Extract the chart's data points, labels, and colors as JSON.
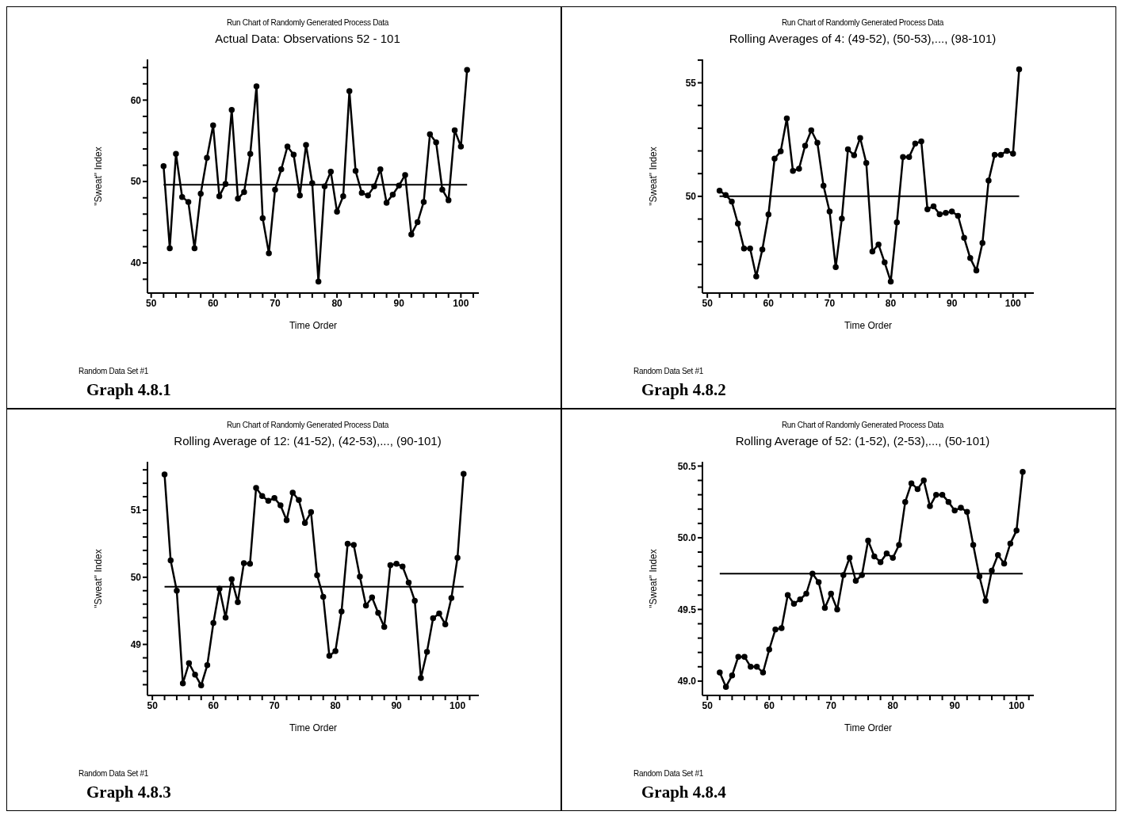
{
  "chart_data": [
    {
      "type": "line",
      "title": "Run Chart of Randomly Generated Process Data",
      "subtitle": "Actual Data:  Observations 52 - 101",
      "xlabel": "Time Order",
      "ylabel": "\"Sweat\" Index",
      "color": "#000000",
      "marker": "circle",
      "x": [
        52,
        53,
        54,
        55,
        56,
        57,
        58,
        59,
        60,
        61,
        62,
        63,
        64,
        65,
        66,
        67,
        68,
        69,
        70,
        71,
        72,
        73,
        74,
        75,
        76,
        77,
        78,
        79,
        80,
        81,
        82,
        83,
        84,
        85,
        86,
        87,
        88,
        89,
        90,
        91,
        92,
        93,
        94,
        95,
        96,
        97,
        98,
        99,
        100,
        101
      ],
      "values": [
        51.9,
        41.8,
        53.4,
        48.1,
        47.5,
        41.8,
        48.5,
        52.9,
        56.9,
        48.2,
        49.7,
        58.8,
        47.9,
        48.7,
        53.4,
        61.7,
        45.5,
        41.2,
        49.0,
        51.5,
        54.3,
        53.3,
        48.3,
        54.5,
        49.8,
        37.7,
        49.4,
        51.2,
        46.3,
        48.2,
        61.1,
        51.3,
        48.6,
        48.3,
        49.4,
        51.5,
        47.4,
        48.4,
        49.5,
        50.8,
        43.5,
        45.0,
        47.5,
        55.8,
        54.8,
        49.0,
        47.7,
        56.3,
        54.3,
        63.7
      ],
      "xlim": [
        49.4,
        102.9
      ],
      "xticks": [
        50,
        {
          "value": 52,
          "label": null
        },
        {
          "value": 54,
          "label": null
        },
        {
          "value": 56,
          "label": null
        },
        {
          "value": 58,
          "label": null
        },
        60,
        {
          "value": 62,
          "label": null
        },
        {
          "value": 64,
          "label": null
        },
        {
          "value": 66,
          "label": null
        },
        {
          "value": 68,
          "label": null
        },
        70,
        {
          "value": 72,
          "label": null
        },
        {
          "value": 74,
          "label": null
        },
        {
          "value": 76,
          "label": null
        },
        {
          "value": 78,
          "label": null
        },
        80,
        {
          "value": 82,
          "label": null
        },
        {
          "value": 84,
          "label": null
        },
        {
          "value": 86,
          "label": null
        },
        {
          "value": 88,
          "label": null
        },
        90,
        {
          "value": 92,
          "label": null
        },
        {
          "value": 94,
          "label": null
        },
        {
          "value": 96,
          "label": null
        },
        {
          "value": 98,
          "label": null
        },
        100,
        {
          "value": 102,
          "label": null
        }
      ],
      "ylim": [
        36.3,
        65
      ],
      "yticks": [
        {
          "value": 38,
          "label": null
        },
        40,
        {
          "value": 42,
          "label": null
        },
        {
          "value": 44,
          "label": null
        },
        {
          "value": 46,
          "label": null
        },
        {
          "value": 48,
          "label": null
        },
        50,
        {
          "value": 52,
          "label": null
        },
        {
          "value": 54,
          "label": null
        },
        {
          "value": 56,
          "label": null
        },
        {
          "value": 58,
          "label": null
        },
        60,
        {
          "value": 62,
          "label": null
        },
        {
          "value": 64,
          "label": null
        }
      ],
      "ref_lines": [
        {
          "axis": "y",
          "value": 49.6,
          "label": null
        }
      ],
      "annotations": [
        "Random Data Set #1",
        "Graph 4.8.1"
      ]
    },
    {
      "type": "line",
      "title": "Run Chart of Randomly Generated Process Data",
      "subtitle": "Rolling Averages of 4:  (49-52), (50-53),..., (98-101)",
      "xlabel": "Time Order",
      "ylabel": "\"Sweat\" Index",
      "color": "#000000",
      "marker": "circle",
      "x": [
        52,
        53,
        54,
        55,
        56,
        57,
        58,
        59,
        60,
        61,
        62,
        63,
        64,
        65,
        66,
        67,
        68,
        69,
        70,
        71,
        72,
        73,
        74,
        75,
        76,
        77,
        78,
        79,
        80,
        81,
        82,
        83,
        84,
        85,
        86,
        87,
        88,
        89,
        90,
        91,
        92,
        93,
        94,
        95,
        96,
        97,
        98,
        99,
        100,
        101
      ],
      "values": [
        50.25,
        50.06,
        49.77,
        48.8,
        47.7,
        47.7,
        46.47,
        47.66,
        49.2,
        51.66,
        51.98,
        53.43,
        51.12,
        51.22,
        52.23,
        52.91,
        52.36,
        50.47,
        49.33,
        46.88,
        49.02,
        52.07,
        51.81,
        52.57,
        51.47,
        47.57,
        47.88,
        47.09,
        46.25,
        48.85,
        51.73,
        51.73,
        52.32,
        52.42,
        49.43,
        49.56,
        49.21,
        49.27,
        49.33,
        49.14,
        48.17,
        47.28,
        46.73,
        47.95,
        50.69,
        51.83,
        51.83,
        52.0,
        51.88,
        55.59
      ],
      "xlim": [
        49.2,
        103.4
      ],
      "xticks": [
        50,
        {
          "value": 52,
          "label": null
        },
        {
          "value": 54,
          "label": null
        },
        {
          "value": 56,
          "label": null
        },
        {
          "value": 58,
          "label": null
        },
        60,
        {
          "value": 62,
          "label": null
        },
        {
          "value": 64,
          "label": null
        },
        {
          "value": 66,
          "label": null
        },
        {
          "value": 68,
          "label": null
        },
        70,
        {
          "value": 72,
          "label": null
        },
        {
          "value": 74,
          "label": null
        },
        {
          "value": 76,
          "label": null
        },
        {
          "value": 78,
          "label": null
        },
        80,
        {
          "value": 82,
          "label": null
        },
        {
          "value": 84,
          "label": null
        },
        {
          "value": 86,
          "label": null
        },
        {
          "value": 88,
          "label": null
        },
        90,
        {
          "value": 92,
          "label": null
        },
        {
          "value": 94,
          "label": null
        },
        {
          "value": 96,
          "label": null
        },
        {
          "value": 98,
          "label": null
        },
        100,
        {
          "value": 102,
          "label": null
        }
      ],
      "ylim": [
        45.74,
        56.03
      ],
      "yticks": [
        {
          "value": 46,
          "label": null
        },
        {
          "value": 47,
          "label": null
        },
        {
          "value": 48,
          "label": null
        },
        {
          "value": 49,
          "label": null
        },
        50,
        {
          "value": 51,
          "label": null
        },
        {
          "value": 52,
          "label": null
        },
        {
          "value": 53,
          "label": null
        },
        {
          "value": 54,
          "label": null
        },
        55,
        {
          "value": 56,
          "label": null
        }
      ],
      "ref_lines": [
        {
          "axis": "y",
          "value": 50.0,
          "label": null
        }
      ],
      "annotations": [
        "Random Data Set #1",
        "Graph 4.8.2"
      ]
    },
    {
      "type": "line",
      "title": "Run Chart of Randomly Generated Process Data",
      "subtitle": "Rolling Average of 12:  (41-52), (42-53),..., (90-101)",
      "xlabel": "Time Order",
      "ylabel": "\"Sweat\" Index",
      "color": "#000000",
      "marker": "circle",
      "x": [
        52,
        53,
        54,
        55,
        56,
        57,
        58,
        59,
        60,
        61,
        62,
        63,
        64,
        65,
        66,
        67,
        68,
        69,
        70,
        71,
        72,
        73,
        74,
        75,
        76,
        77,
        78,
        79,
        80,
        81,
        82,
        83,
        84,
        85,
        86,
        87,
        88,
        89,
        90,
        91,
        92,
        93,
        94,
        95,
        96,
        97,
        98,
        99,
        100,
        101
      ],
      "values": [
        51.53,
        50.25,
        49.8,
        48.42,
        48.72,
        48.55,
        48.39,
        48.69,
        49.32,
        49.83,
        49.4,
        49.97,
        49.63,
        50.21,
        50.2,
        51.33,
        51.21,
        51.14,
        51.18,
        51.07,
        50.85,
        51.26,
        51.15,
        50.81,
        50.97,
        50.03,
        49.71,
        48.83,
        48.9,
        49.49,
        50.5,
        50.48,
        50.01,
        49.58,
        49.7,
        49.47,
        49.26,
        50.18,
        50.2,
        50.16,
        49.92,
        49.65,
        48.5,
        48.89,
        49.39,
        49.46,
        49.3,
        49.69,
        50.29,
        51.54
      ],
      "xlim": [
        49.2,
        103.5
      ],
      "xticks": [
        50,
        {
          "value": 52,
          "label": null
        },
        {
          "value": 54,
          "label": null
        },
        {
          "value": 56,
          "label": null
        },
        {
          "value": 58,
          "label": null
        },
        60,
        {
          "value": 62,
          "label": null
        },
        {
          "value": 64,
          "label": null
        },
        {
          "value": 66,
          "label": null
        },
        {
          "value": 68,
          "label": null
        },
        70,
        {
          "value": 72,
          "label": null
        },
        {
          "value": 74,
          "label": null
        },
        {
          "value": 76,
          "label": null
        },
        {
          "value": 78,
          "label": null
        },
        80,
        {
          "value": 82,
          "label": null
        },
        {
          "value": 84,
          "label": null
        },
        {
          "value": 86,
          "label": null
        },
        {
          "value": 88,
          "label": null
        },
        90,
        {
          "value": 92,
          "label": null
        },
        {
          "value": 94,
          "label": null
        },
        {
          "value": 96,
          "label": null
        },
        {
          "value": 98,
          "label": null
        },
        100,
        {
          "value": 102,
          "label": null
        }
      ],
      "ylim": [
        48.24,
        51.72
      ],
      "yticks": [
        {
          "value": 48.4,
          "label": null
        },
        {
          "value": 48.6,
          "label": null
        },
        {
          "value": 48.8,
          "label": null
        },
        49,
        {
          "value": 49.2,
          "label": null
        },
        {
          "value": 49.4,
          "label": null
        },
        {
          "value": 49.6,
          "label": null
        },
        {
          "value": 49.8,
          "label": null
        },
        50,
        {
          "value": 50.2,
          "label": null
        },
        {
          "value": 50.4,
          "label": null
        },
        {
          "value": 50.6,
          "label": null
        },
        {
          "value": 50.8,
          "label": null
        },
        51,
        {
          "value": 51.2,
          "label": null
        },
        {
          "value": 51.4,
          "label": null
        },
        {
          "value": 51.6,
          "label": null
        }
      ],
      "ref_lines": [
        {
          "axis": "y",
          "value": 49.86,
          "label": null
        }
      ],
      "annotations": [
        "Random Data Set #1",
        "Graph 4.8.3"
      ]
    },
    {
      "type": "line",
      "title": "Run Chart of Randomly Generated Process Data",
      "subtitle": "Rolling Average of 52:  (1-52), (2-53),..., (50-101)",
      "xlabel": "Time Order",
      "ylabel": "\"Sweat\" Index",
      "color": "#000000",
      "marker": "circle",
      "x": [
        52,
        53,
        54,
        55,
        56,
        57,
        58,
        59,
        60,
        61,
        62,
        63,
        64,
        65,
        66,
        67,
        68,
        69,
        70,
        71,
        72,
        73,
        74,
        75,
        76,
        77,
        78,
        79,
        80,
        81,
        82,
        83,
        84,
        85,
        86,
        87,
        88,
        89,
        90,
        91,
        92,
        93,
        94,
        95,
        96,
        97,
        98,
        99,
        100,
        101
      ],
      "values": [
        49.06,
        48.96,
        49.04,
        49.17,
        49.17,
        49.1,
        49.1,
        49.06,
        49.22,
        49.36,
        49.37,
        49.6,
        49.54,
        49.57,
        49.61,
        49.75,
        49.69,
        49.51,
        49.61,
        49.5,
        49.74,
        49.86,
        49.7,
        49.74,
        49.98,
        49.87,
        49.83,
        49.89,
        49.86,
        49.95,
        50.25,
        50.38,
        50.34,
        50.4,
        50.22,
        50.3,
        50.3,
        50.25,
        50.19,
        50.21,
        50.18,
        49.95,
        49.73,
        49.56,
        49.77,
        49.88,
        49.82,
        49.96,
        50.05,
        50.46
      ],
      "xlim": [
        49.2,
        102.8
      ],
      "xticks": [
        50,
        {
          "value": 52,
          "label": null
        },
        {
          "value": 54,
          "label": null
        },
        {
          "value": 56,
          "label": null
        },
        {
          "value": 58,
          "label": null
        },
        60,
        {
          "value": 62,
          "label": null
        },
        {
          "value": 64,
          "label": null
        },
        {
          "value": 66,
          "label": null
        },
        {
          "value": 68,
          "label": null
        },
        70,
        {
          "value": 72,
          "label": null
        },
        {
          "value": 74,
          "label": null
        },
        {
          "value": 76,
          "label": null
        },
        {
          "value": 78,
          "label": null
        },
        80,
        {
          "value": 82,
          "label": null
        },
        {
          "value": 84,
          "label": null
        },
        {
          "value": 86,
          "label": null
        },
        {
          "value": 88,
          "label": null
        },
        90,
        {
          "value": 92,
          "label": null
        },
        {
          "value": 94,
          "label": null
        },
        {
          "value": 96,
          "label": null
        },
        {
          "value": 98,
          "label": null
        },
        100,
        {
          "value": 102,
          "label": null
        }
      ],
      "ylim": [
        48.9,
        50.53
      ],
      "yticks": [
        {
          "value": 49.0,
          "label": "49.0"
        },
        {
          "value": 49.1,
          "label": null
        },
        {
          "value": 49.2,
          "label": null
        },
        {
          "value": 49.3,
          "label": null
        },
        {
          "value": 49.4,
          "label": null
        },
        {
          "value": 49.5,
          "label": "49.5"
        },
        {
          "value": 49.6,
          "label": null
        },
        {
          "value": 49.7,
          "label": null
        },
        {
          "value": 49.8,
          "label": null
        },
        {
          "value": 49.9,
          "label": null
        },
        {
          "value": 50.0,
          "label": "50.0"
        },
        {
          "value": 50.1,
          "label": null
        },
        {
          "value": 50.2,
          "label": null
        },
        {
          "value": 50.3,
          "label": null
        },
        {
          "value": 50.4,
          "label": null
        },
        {
          "value": 50.5,
          "label": "50.5"
        }
      ],
      "ref_lines": [
        {
          "axis": "y",
          "value": 49.75,
          "label": null
        }
      ],
      "annotations": [
        "Random Data Set #1",
        "Graph 4.8.4"
      ]
    }
  ]
}
